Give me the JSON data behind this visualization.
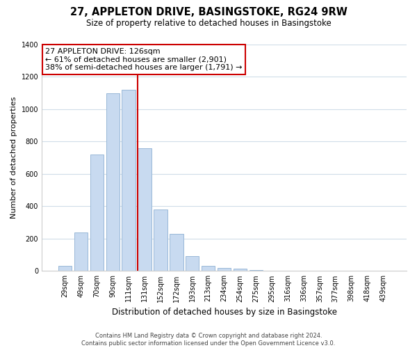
{
  "title": "27, APPLETON DRIVE, BASINGSTOKE, RG24 9RW",
  "subtitle": "Size of property relative to detached houses in Basingstoke",
  "xlabel": "Distribution of detached houses by size in Basingstoke",
  "ylabel": "Number of detached properties",
  "bar_labels": [
    "29sqm",
    "49sqm",
    "70sqm",
    "90sqm",
    "111sqm",
    "131sqm",
    "152sqm",
    "172sqm",
    "193sqm",
    "213sqm",
    "234sqm",
    "254sqm",
    "275sqm",
    "295sqm",
    "316sqm",
    "336sqm",
    "357sqm",
    "377sqm",
    "398sqm",
    "418sqm",
    "439sqm"
  ],
  "bar_values": [
    30,
    240,
    720,
    1100,
    1120,
    760,
    380,
    230,
    90,
    30,
    20,
    15,
    5,
    0,
    0,
    0,
    0,
    0,
    0,
    0,
    0
  ],
  "bar_color": "#c8daf0",
  "bar_edge_color": "#99b8d8",
  "marker_color": "#cc0000",
  "annotation_line1": "27 APPLETON DRIVE: 126sqm",
  "annotation_line2": "← 61% of detached houses are smaller (2,901)",
  "annotation_line3": "38% of semi-detached houses are larger (1,791) →",
  "annotation_box_color": "#ffffff",
  "annotation_box_edge": "#cc0000",
  "ylim": [
    0,
    1400
  ],
  "yticks": [
    0,
    200,
    400,
    600,
    800,
    1000,
    1200,
    1400
  ],
  "footer_line1": "Contains HM Land Registry data © Crown copyright and database right 2024.",
  "footer_line2": "Contains public sector information licensed under the Open Government Licence v3.0.",
  "background_color": "#ffffff",
  "grid_color": "#d0dde8"
}
